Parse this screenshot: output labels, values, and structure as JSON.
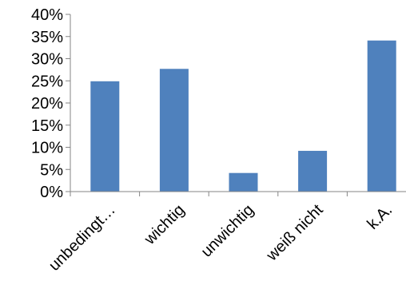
{
  "chart_data": {
    "type": "bar",
    "categories": [
      "unbedingt…",
      "wichtig",
      "unwichtig",
      "weiß nicht",
      "k.A."
    ],
    "values": [
      0.249,
      0.277,
      0.042,
      0.092,
      0.341
    ],
    "y_tick_values": [
      0,
      0.05,
      0.1,
      0.15,
      0.2,
      0.25,
      0.3,
      0.35,
      0.4
    ],
    "y_tick_labels": [
      "0%",
      "5%",
      "10%",
      "15%",
      "20%",
      "25%",
      "30%",
      "35%",
      "40%"
    ],
    "ylim": [
      0,
      0.4
    ],
    "bar_color": "#4f81bd",
    "axis_color": "#868686",
    "grid": false,
    "legend": "none",
    "title": "",
    "xlabel": "",
    "ylabel": ""
  }
}
